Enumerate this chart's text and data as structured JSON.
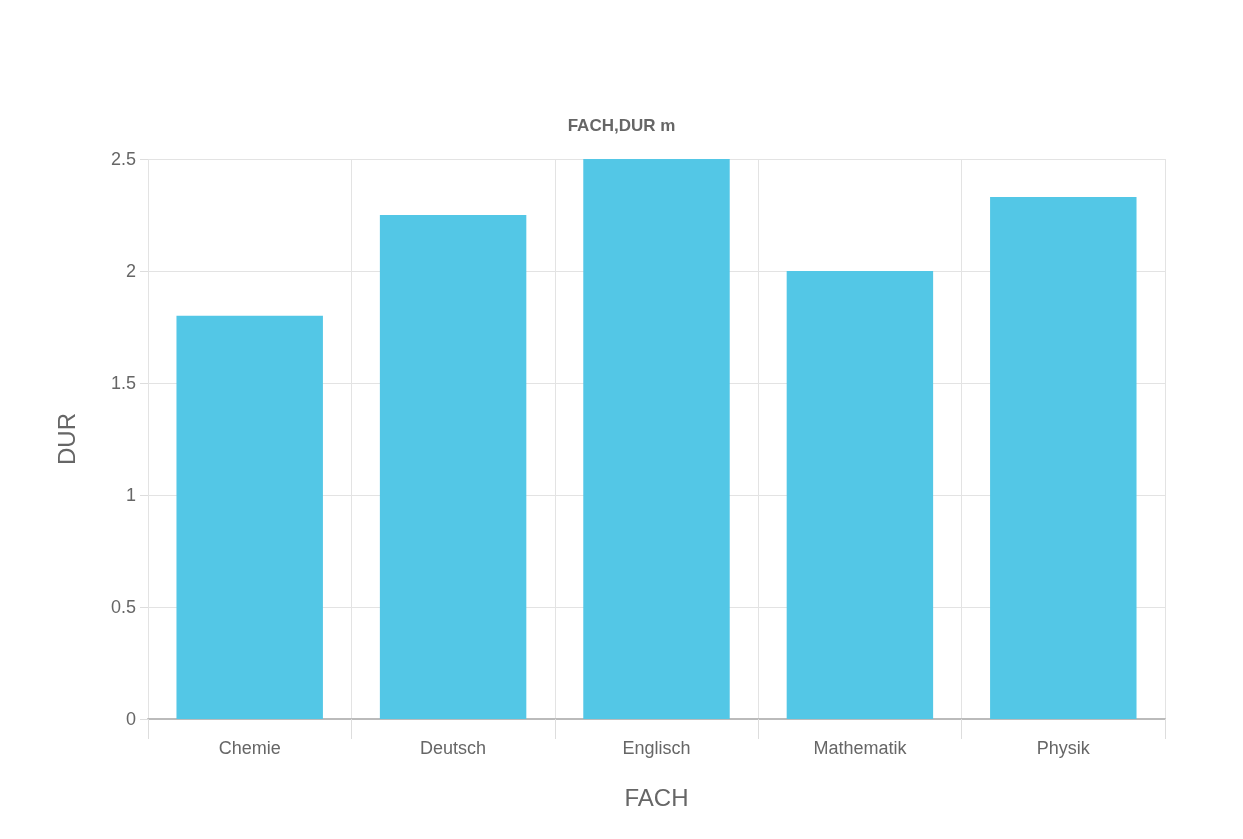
{
  "chart_data": {
    "type": "bar",
    "title": "FACH,DUR m",
    "xlabel": "FACH",
    "ylabel": "DUR",
    "categories": [
      "Chemie",
      "Deutsch",
      "Englisch",
      "Mathematik",
      "Physik"
    ],
    "values": [
      1.8,
      2.25,
      2.5,
      2.0,
      2.33
    ],
    "color": "#53c7e6",
    "ylim": [
      0,
      2.5
    ],
    "yticks": [
      0,
      0.5,
      1,
      1.5,
      2,
      2.5
    ],
    "grid": true
  }
}
